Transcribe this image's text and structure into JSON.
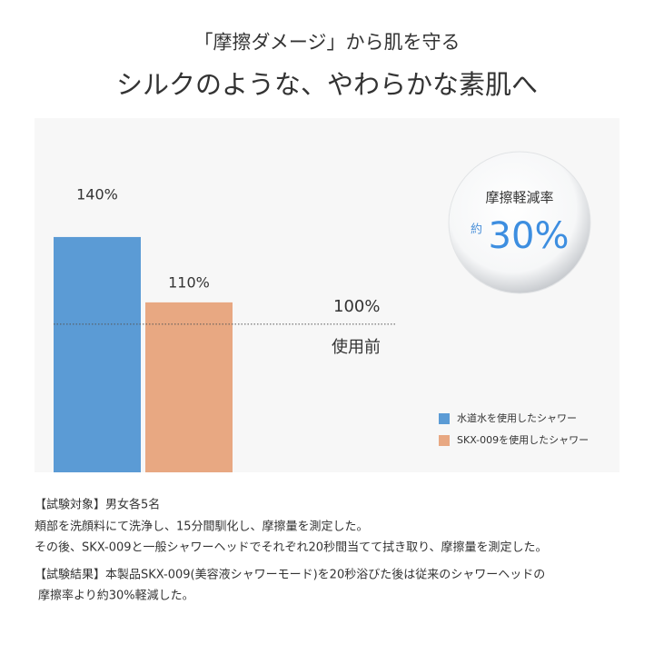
{
  "header": {
    "subtitle": "「摩擦ダメージ」から肌を守る",
    "title": "シルクのような、やわらかな素肌へ"
  },
  "chart_data": {
    "type": "bar",
    "categories": [
      "水道水を使用したシャワー",
      "SKX-009を使用したシャワー"
    ],
    "values": [
      140,
      110
    ],
    "value_labels": [
      "140%",
      "110%"
    ],
    "colors": [
      "#5b9bd5",
      "#e8a882"
    ],
    "ylim": [
      32,
      190
    ],
    "reference": {
      "value": 100,
      "label": "100%",
      "note": "使用前"
    },
    "legend": "bottom-right"
  },
  "badge": {
    "title": "摩擦軽減率",
    "prefix": "約",
    "value": "30%"
  },
  "notes": [
    "【試験対象】男女各5名",
    "頬部を洗顔料にて洗浄し、15分間馴化し、摩擦量を測定した。",
    "その後、SKX-009と一般シャワーヘッドでそれぞれ20秒間当てて拭き取り、摩擦量を測定した。",
    "【試験結果】本製品SKX-009(美容液シャワーモード)を20秒浴びた後は従来のシャワーヘッドの",
    "摩擦率より約30%軽減した。"
  ]
}
